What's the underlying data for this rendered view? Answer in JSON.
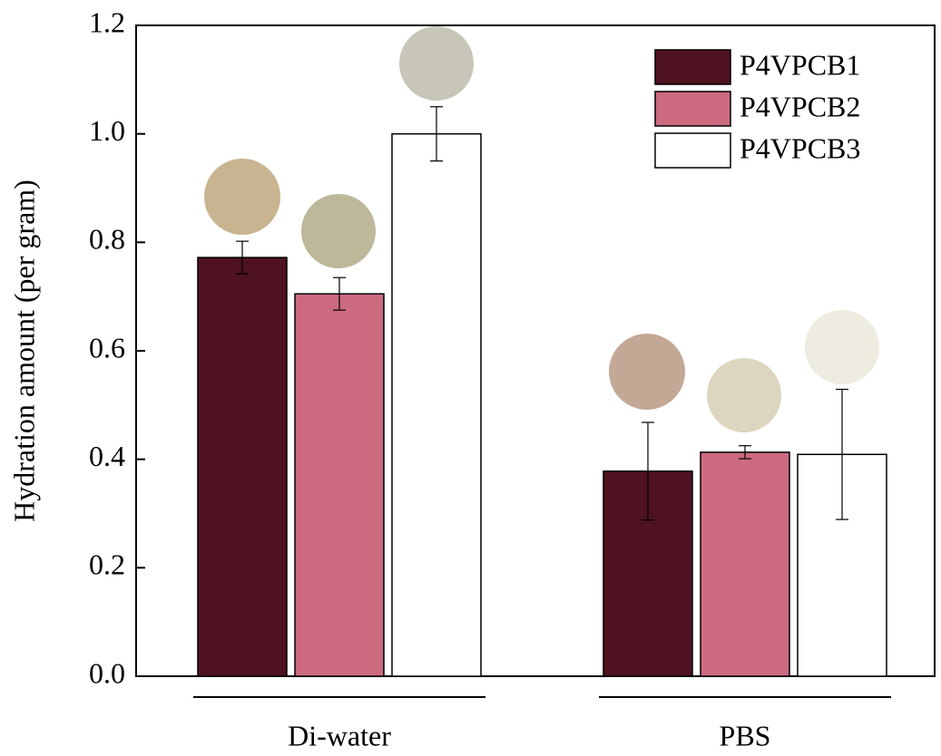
{
  "chart_data": {
    "type": "bar",
    "y_label": "Hydration amount (per gram)",
    "categories": [
      "Di-water",
      "PBS"
    ],
    "series": [
      {
        "name": "P4VPCB1",
        "color": "#4f1220",
        "values": [
          0.772,
          0.378
        ],
        "errors": [
          0.03,
          0.09
        ]
      },
      {
        "name": "P4VPCB2",
        "color": "#cc6a80",
        "values": [
          0.705,
          0.413
        ],
        "errors": [
          0.03,
          0.012
        ]
      },
      {
        "name": "P4VPCB3",
        "color": "#ffffff",
        "values": [
          1.0,
          0.409
        ],
        "errors": [
          0.05,
          0.12
        ]
      }
    ],
    "ylim": [
      0,
      1.2
    ],
    "yticks": [
      {
        "value": 0,
        "label": "0.0"
      },
      {
        "value": 0.2,
        "label": "0.2"
      },
      {
        "value": 0.4,
        "label": "0.4"
      },
      {
        "value": 0.6,
        "label": "0.6"
      },
      {
        "value": 0.8,
        "label": "0.8"
      },
      {
        "value": 1.0,
        "label": "1.0"
      },
      {
        "value": 1.2,
        "label": "1.2"
      }
    ],
    "legend": "upper right"
  }
}
